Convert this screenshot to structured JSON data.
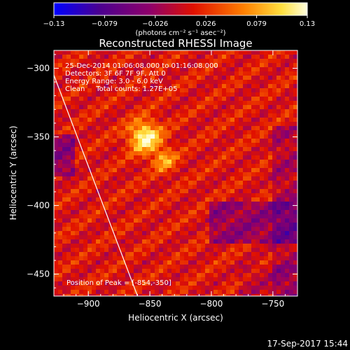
{
  "chart_data": {
    "type": "heatmap",
    "title": "Reconstructed RHESSI Image",
    "xlabel": "Heliocentric X (arcsec)",
    "ylabel": "Heliocentric Y (arcsec)",
    "xlim": [
      -928,
      -730
    ],
    "ylim": [
      -466,
      -287
    ],
    "x_ticks": [
      -900,
      -850,
      -800,
      -750
    ],
    "y_ticks": [
      -300,
      -350,
      -400,
      -450
    ],
    "x_tick_labels": [
      "−900",
      "−850",
      "−800",
      "−750"
    ],
    "y_tick_labels": [
      "−300",
      "−350",
      "−400",
      "−450"
    ],
    "colorbar": {
      "range": [
        -0.13,
        0.13
      ],
      "tick_labels": [
        "−0.13",
        "−0.079",
        "−0.026",
        "0.026",
        "0.079",
        "0.13"
      ],
      "units": "(photons cm⁻² s⁻¹ asec⁻²)"
    },
    "annotations": [
      "25-Dec-2014 01:06:08.000 to 01:16:08.000",
      "Detectors: 3F 6F 7F 9F, Att 0",
      "Energy Range: 3.0 - 6.0 keV",
      "Clean     Total counts: 1.27E+05"
    ],
    "peak_label": "Position of Peak = [-854,-350]",
    "peak_position": [
      -854,
      -350
    ],
    "secondary_source": [
      -838,
      -367
    ],
    "limb_line": [
      [
        -928,
        -305
      ],
      [
        -860,
        -466
      ]
    ],
    "timestamp": "17-Sep-2017 15:44"
  }
}
